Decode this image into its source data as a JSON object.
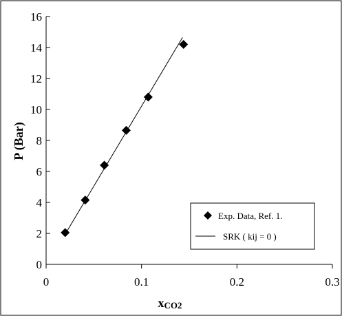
{
  "chart_data": {
    "type": "scatter",
    "xlabel_main": "x",
    "xlabel_sub": "CO2",
    "ylabel": "P  (Bar)",
    "xlim": [
      0,
      0.3
    ],
    "ylim": [
      0,
      16
    ],
    "x_ticks": [
      0,
      0.1,
      0.2,
      0.3
    ],
    "x_tick_labels": [
      "0",
      "0.1",
      "0.2",
      "0.3"
    ],
    "y_ticks": [
      0,
      2,
      4,
      6,
      8,
      10,
      12,
      14,
      16
    ],
    "y_tick_labels": [
      "0",
      "2",
      "4",
      "6",
      "8",
      "10",
      "12",
      "14",
      "16"
    ],
    "grid": false,
    "legend_position": "bottom-right",
    "series": [
      {
        "name": "Exp. Data, Ref. 1.",
        "marker": "diamond",
        "color": "#000000",
        "x": [
          0.02,
          0.041,
          0.061,
          0.084,
          0.107,
          0.144
        ],
        "y": [
          2.05,
          4.15,
          6.4,
          8.65,
          10.8,
          14.2
        ]
      },
      {
        "name": "SRK ( kij = 0 )",
        "marker": "line",
        "color": "#000000",
        "x": [
          0.02,
          0.143
        ],
        "y": [
          1.95,
          14.65
        ]
      }
    ]
  }
}
